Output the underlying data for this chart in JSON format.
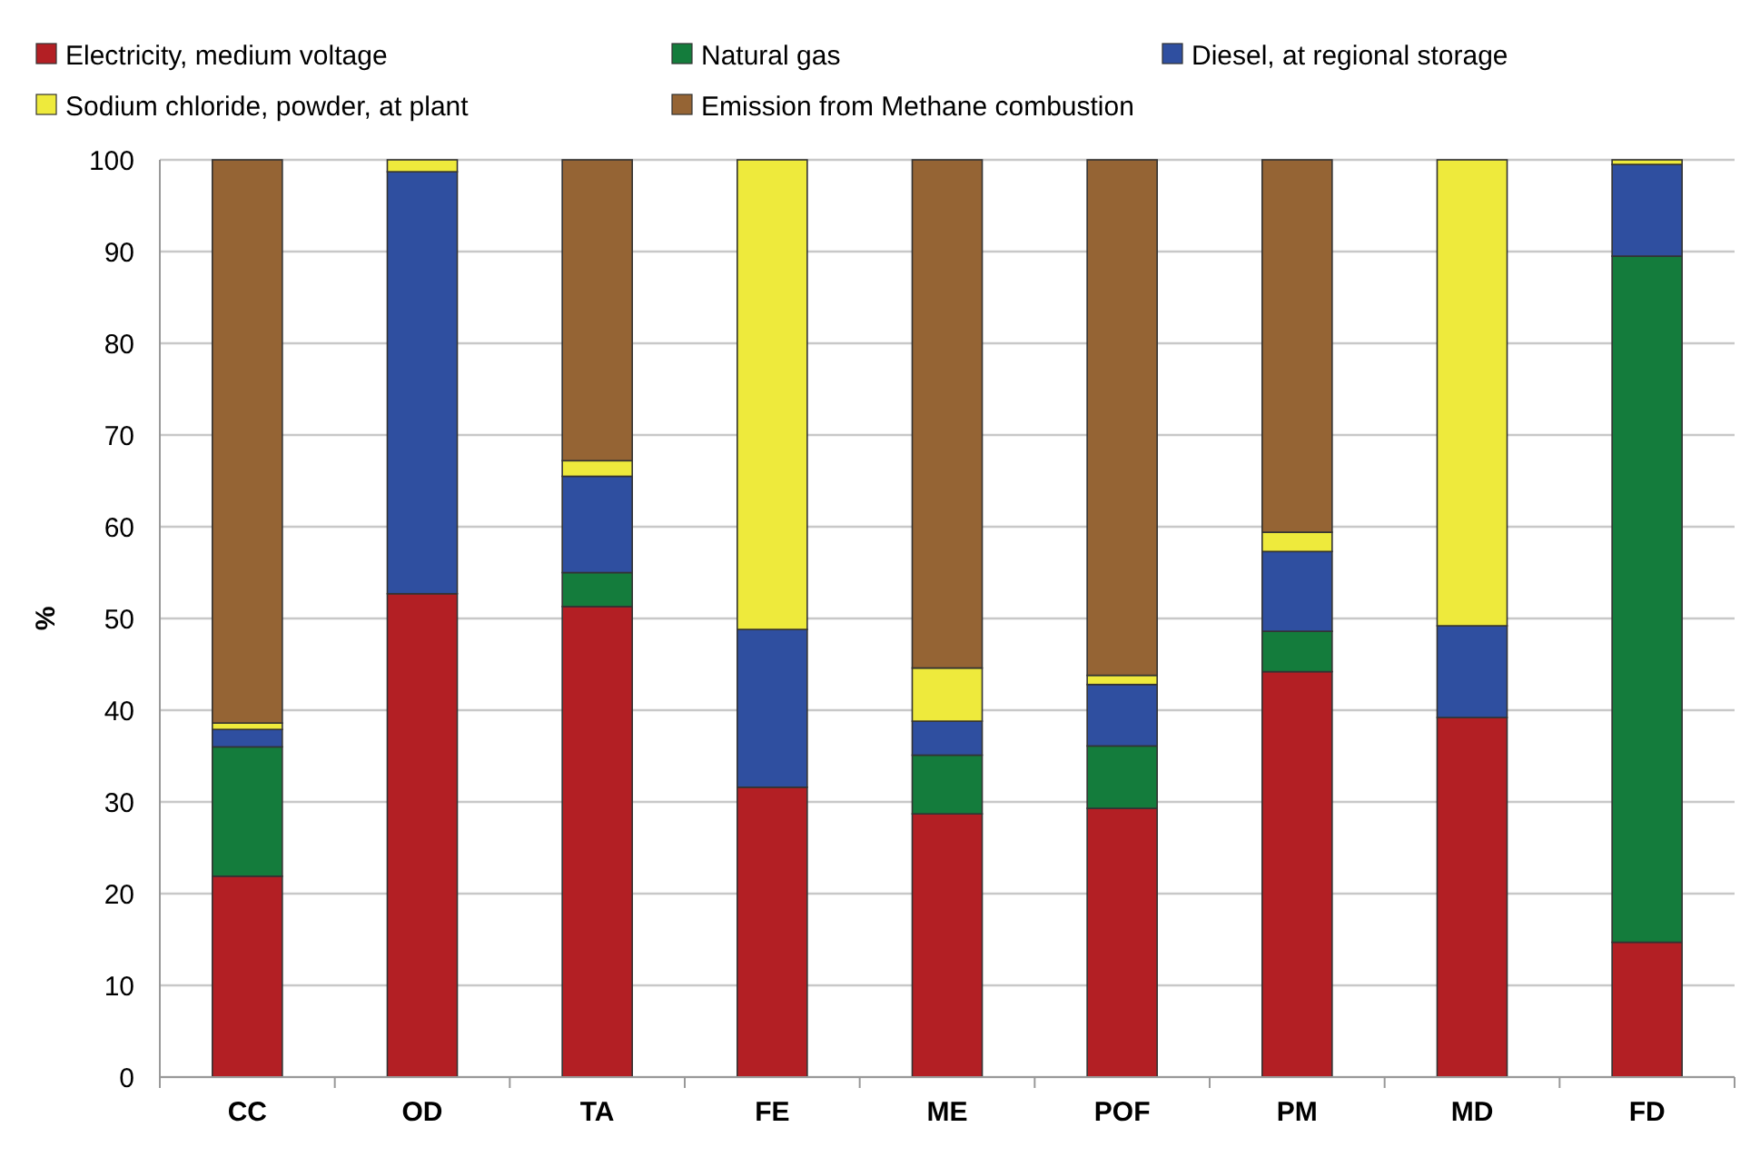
{
  "chart_data": {
    "type": "bar",
    "stacked": true,
    "ylabel": "%",
    "categories": [
      "CC",
      "OD",
      "TA",
      "FE",
      "ME",
      "POF",
      "PM",
      "MD",
      "FD"
    ],
    "ylim": [
      0,
      100
    ],
    "yticks": [
      0,
      10,
      20,
      30,
      40,
      50,
      60,
      70,
      80,
      90,
      100
    ],
    "grid": "y",
    "legend": "top",
    "series": [
      {
        "name": "Electricity, medium voltage",
        "color": "#b31f24",
        "values": [
          21.9,
          52.7,
          51.3,
          31.6,
          28.7,
          29.3,
          44.2,
          39.2,
          14.7
        ]
      },
      {
        "name": "Natural gas",
        "color": "#147c3c",
        "values": [
          14.1,
          0,
          3.7,
          0,
          6.4,
          6.8,
          4.4,
          0,
          74.8
        ]
      },
      {
        "name": "Diesel, at regional storage",
        "color": "#2f4fa0",
        "values": [
          1.9,
          46.0,
          10.5,
          17.2,
          3.7,
          6.7,
          8.7,
          10.0,
          10.0
        ]
      },
      {
        "name": "Sodium chloride, powder, at plant",
        "color": "#eeea3c",
        "values": [
          0.7,
          1.3,
          1.7,
          51.2,
          5.8,
          1.0,
          2.1,
          50.8,
          0.5
        ]
      },
      {
        "name": "Emission from Methane combustion",
        "color": "#956434",
        "values": [
          61.4,
          0,
          32.8,
          0,
          55.4,
          56.2,
          40.6,
          0,
          0
        ]
      }
    ]
  }
}
